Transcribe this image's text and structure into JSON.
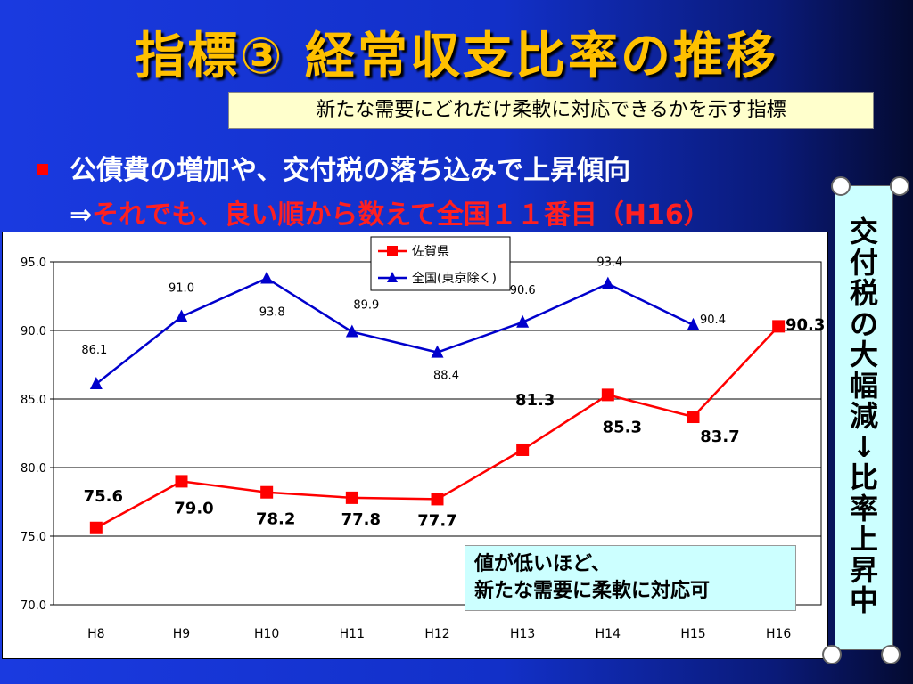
{
  "title": "指標③ 経常収支比率の推移",
  "subtitle": "新たな需要にどれだけ柔軟に対応できるかを示す指標",
  "bullet": {
    "line1": "公債費の増加や、交付税の落ち込みで上昇傾向",
    "arrow": "⇒",
    "line2": "それでも、良い順から数えて全国１１番目（H16）"
  },
  "note": {
    "line1": "値が低いほど、",
    "line2": "新たな需要に柔軟に対応可"
  },
  "scroll": {
    "text": "交付税の大幅減↓比率上昇中"
  },
  "colors": {
    "saga": "#ff0000",
    "national": "#0000cc",
    "title": "#ffc000"
  },
  "chart_data": {
    "type": "line",
    "categories": [
      "H8",
      "H9",
      "H10",
      "H11",
      "H12",
      "H13",
      "H14",
      "H15",
      "H16"
    ],
    "series": [
      {
        "name": "佐賀県",
        "marker": "square",
        "color": "#ff0000",
        "values": [
          75.6,
          79.0,
          78.2,
          77.8,
          77.7,
          81.3,
          85.3,
          83.7,
          90.3
        ],
        "labels": [
          "75.6",
          "79.0",
          "78.2",
          "77.8",
          "77.7",
          "81.3",
          "85.3",
          "83.7",
          "90.3"
        ]
      },
      {
        "name": "全国(東京除く)",
        "marker": "triangle",
        "color": "#0000cc",
        "values": [
          86.1,
          91.0,
          93.8,
          89.9,
          88.4,
          90.6,
          93.4,
          90.4,
          null
        ],
        "labels": [
          "86.1",
          "91.0",
          "93.8",
          "89.9",
          "88.4",
          "90.6",
          "93.4",
          "90.4",
          ""
        ]
      }
    ],
    "yticks": [
      "95.0",
      "90.0",
      "85.0",
      "80.0",
      "75.0",
      "70.0"
    ],
    "ylim": [
      70,
      95
    ],
    "grid": true,
    "legend": "top-center"
  }
}
